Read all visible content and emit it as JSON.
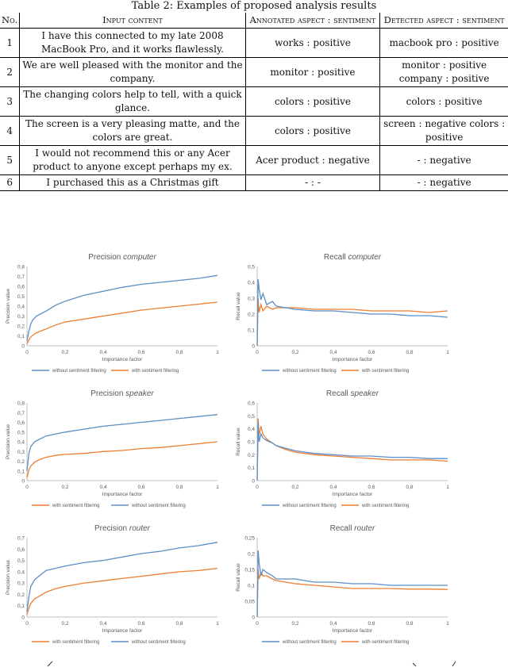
{
  "table": {
    "caption": "Table 2: Examples of proposed analysis results",
    "headers": [
      "No.",
      "Input content",
      "Annotated aspect : sentiment",
      "Detected aspect : sentiment"
    ],
    "rows": [
      {
        "no": "1",
        "input": "I have this connected to my late 2008 MacBook Pro, and it works flawlessly.",
        "annotated": "works : positive",
        "detected": "macbook pro : positive"
      },
      {
        "no": "2",
        "input": "We are well pleased with the monitor and the company.",
        "annotated": "monitor : positive",
        "detected": "monitor : positive company : positive"
      },
      {
        "no": "3",
        "input": "The changing colors help to tell, with a quick glance.",
        "annotated": "colors : positive",
        "detected": "colors : positive"
      },
      {
        "no": "4",
        "input": "The screen is a very pleasing matte, and the colors are great.",
        "annotated": "colors : positive",
        "detected": "screen : negative colors : positive"
      },
      {
        "no": "5",
        "input": "I would not recommend this or any Acer product to anyone except perhaps my ex.",
        "annotated": "Acer product : negative",
        "detected": "- : negative"
      },
      {
        "no": "6",
        "input": "I purchased this as a Christmas gift",
        "annotated": "- : -",
        "detected": "- : negative"
      }
    ]
  },
  "colors": {
    "without": "#5b8ec7",
    "with": "#ed7d31"
  },
  "chart_data": [
    {
      "id": "precision-computer",
      "type": "line",
      "title": "Precision",
      "title_italic": "computer",
      "xlabel": "Importance factor",
      "ylabel": "Precision value",
      "xlim": [
        0,
        1
      ],
      "ylim": [
        0,
        0.8
      ],
      "xticks": [
        "0",
        "0,2",
        "0,4",
        "0,6",
        "0,8",
        "1"
      ],
      "yticks": [
        "0",
        "0,1",
        "0,2",
        "0,3",
        "0,4",
        "0,5",
        "0,6",
        "0,7",
        "0,8"
      ],
      "legend_order": [
        "without",
        "with"
      ],
      "series": [
        {
          "name": "without sentiment filtering",
          "key": "without",
          "x": [
            0,
            0.01,
            0.02,
            0.03,
            0.05,
            0.07,
            0.1,
            0.15,
            0.2,
            0.3,
            0.4,
            0.5,
            0.6,
            0.7,
            0.8,
            0.9,
            1.0
          ],
          "y": [
            0.05,
            0.15,
            0.22,
            0.26,
            0.3,
            0.32,
            0.35,
            0.41,
            0.45,
            0.51,
            0.55,
            0.59,
            0.62,
            0.64,
            0.66,
            0.68,
            0.71
          ]
        },
        {
          "name": "with sentiment filtering",
          "key": "with",
          "x": [
            0,
            0.01,
            0.02,
            0.04,
            0.06,
            0.1,
            0.15,
            0.2,
            0.3,
            0.4,
            0.5,
            0.6,
            0.7,
            0.8,
            0.9,
            1.0
          ],
          "y": [
            0.02,
            0.06,
            0.09,
            0.12,
            0.14,
            0.17,
            0.21,
            0.24,
            0.27,
            0.3,
            0.33,
            0.36,
            0.38,
            0.4,
            0.42,
            0.44
          ]
        }
      ]
    },
    {
      "id": "recall-computer",
      "type": "line",
      "title": "Recall",
      "title_italic": "computer",
      "xlabel": "Importance factor",
      "ylabel": "Recall value",
      "xlim": [
        0,
        1
      ],
      "ylim": [
        0,
        0.5
      ],
      "xticks": [
        "0",
        "0,2",
        "0,4",
        "0,6",
        "0,8",
        "1"
      ],
      "yticks": [
        "0",
        "0,1",
        "0,2",
        "0,3",
        "0,4",
        "0,5"
      ],
      "legend_order": [
        "without",
        "with"
      ],
      "series": [
        {
          "name": "without sentiment filtering",
          "key": "without",
          "x": [
            0,
            0.005,
            0.01,
            0.02,
            0.03,
            0.05,
            0.08,
            0.1,
            0.15,
            0.2,
            0.3,
            0.4,
            0.5,
            0.6,
            0.7,
            0.8,
            0.9,
            1.0
          ],
          "y": [
            0.0,
            0.42,
            0.36,
            0.29,
            0.33,
            0.26,
            0.28,
            0.25,
            0.24,
            0.23,
            0.22,
            0.22,
            0.21,
            0.2,
            0.2,
            0.19,
            0.19,
            0.18
          ]
        },
        {
          "name": "with sentiment filtering",
          "key": "with",
          "x": [
            0,
            0.005,
            0.01,
            0.02,
            0.03,
            0.05,
            0.08,
            0.1,
            0.15,
            0.2,
            0.3,
            0.4,
            0.5,
            0.6,
            0.7,
            0.8,
            0.9,
            1.0
          ],
          "y": [
            0.0,
            0.3,
            0.21,
            0.26,
            0.22,
            0.25,
            0.23,
            0.24,
            0.24,
            0.24,
            0.23,
            0.23,
            0.23,
            0.22,
            0.22,
            0.22,
            0.21,
            0.22
          ]
        }
      ]
    },
    {
      "id": "precision-speaker",
      "type": "line",
      "title": "Precision",
      "title_italic": "speaker",
      "xlabel": "Importance factor",
      "ylabel": "Precision value",
      "xlim": [
        0,
        1
      ],
      "ylim": [
        0,
        0.8
      ],
      "xticks": [
        "0",
        "0,2",
        "0,4",
        "0,6",
        "0,8",
        "1"
      ],
      "yticks": [
        "0",
        "0,1",
        "0,2",
        "0,3",
        "0,4",
        "0,5",
        "0,6",
        "0,7",
        "0,8"
      ],
      "legend_order": [
        "with",
        "without"
      ],
      "series": [
        {
          "name": "without sentiment filtering",
          "key": "without",
          "x": [
            0,
            0.01,
            0.02,
            0.04,
            0.07,
            0.1,
            0.15,
            0.2,
            0.3,
            0.4,
            0.5,
            0.6,
            0.7,
            0.8,
            0.9,
            1.0
          ],
          "y": [
            0.1,
            0.28,
            0.35,
            0.4,
            0.43,
            0.46,
            0.48,
            0.5,
            0.53,
            0.56,
            0.58,
            0.6,
            0.62,
            0.64,
            0.66,
            0.68
          ]
        },
        {
          "name": "with sentiment filtering",
          "key": "with",
          "x": [
            0,
            0.01,
            0.02,
            0.04,
            0.07,
            0.1,
            0.15,
            0.2,
            0.3,
            0.4,
            0.5,
            0.6,
            0.7,
            0.8,
            0.9,
            1.0
          ],
          "y": [
            0.03,
            0.11,
            0.15,
            0.19,
            0.22,
            0.24,
            0.26,
            0.27,
            0.28,
            0.3,
            0.31,
            0.33,
            0.34,
            0.36,
            0.38,
            0.4
          ]
        }
      ]
    },
    {
      "id": "recall-speaker",
      "type": "line",
      "title": "Recall",
      "title_italic": "speaker",
      "xlabel": "Importance factor",
      "ylabel": "Recall value",
      "xlim": [
        0,
        1
      ],
      "ylim": [
        0,
        0.6
      ],
      "xticks": [
        "0",
        "0,2",
        "0,4",
        "0,6",
        "0,8",
        "1"
      ],
      "yticks": [
        "0",
        "0,1",
        "0,2",
        "0,3",
        "0,4",
        "0,5",
        "0,6"
      ],
      "legend_order": [
        "without",
        "with"
      ],
      "series": [
        {
          "name": "without sentiment filtering",
          "key": "without",
          "x": [
            0,
            0.005,
            0.01,
            0.02,
            0.03,
            0.05,
            0.08,
            0.1,
            0.15,
            0.2,
            0.3,
            0.4,
            0.5,
            0.6,
            0.7,
            0.8,
            0.9,
            1.0
          ],
          "y": [
            0.0,
            0.45,
            0.3,
            0.36,
            0.33,
            0.31,
            0.29,
            0.27,
            0.25,
            0.23,
            0.21,
            0.2,
            0.19,
            0.19,
            0.18,
            0.18,
            0.17,
            0.17
          ]
        },
        {
          "name": "with sentiment filtering",
          "key": "with",
          "x": [
            0,
            0.005,
            0.01,
            0.02,
            0.03,
            0.05,
            0.08,
            0.1,
            0.15,
            0.2,
            0.3,
            0.4,
            0.5,
            0.6,
            0.7,
            0.8,
            0.9,
            1.0
          ],
          "y": [
            0.0,
            0.48,
            0.35,
            0.42,
            0.36,
            0.32,
            0.29,
            0.27,
            0.24,
            0.22,
            0.2,
            0.19,
            0.18,
            0.17,
            0.16,
            0.16,
            0.16,
            0.15
          ]
        }
      ]
    },
    {
      "id": "precision-router",
      "type": "line",
      "title": "Precision",
      "title_italic": "router",
      "xlabel": "Importance factor",
      "ylabel": "Precision value",
      "xlim": [
        0,
        1
      ],
      "ylim": [
        0,
        0.7
      ],
      "xticks": [
        "0",
        "0,2",
        "0,4",
        "0,6",
        "0,8",
        "1"
      ],
      "yticks": [
        "0",
        "0,1",
        "0,2",
        "0,3",
        "0,4",
        "0,5",
        "0,6",
        "0,7"
      ],
      "legend_order": [
        "with",
        "without"
      ],
      "series": [
        {
          "name": "without sentiment filtering",
          "key": "without",
          "x": [
            0,
            0.01,
            0.02,
            0.04,
            0.07,
            0.1,
            0.15,
            0.2,
            0.3,
            0.4,
            0.5,
            0.6,
            0.7,
            0.8,
            0.9,
            1.0
          ],
          "y": [
            0.05,
            0.18,
            0.27,
            0.33,
            0.37,
            0.41,
            0.43,
            0.45,
            0.48,
            0.5,
            0.53,
            0.56,
            0.58,
            0.61,
            0.63,
            0.66
          ]
        },
        {
          "name": "with sentiment filtering",
          "key": "with",
          "x": [
            0,
            0.01,
            0.02,
            0.04,
            0.07,
            0.1,
            0.15,
            0.2,
            0.3,
            0.4,
            0.5,
            0.6,
            0.7,
            0.8,
            0.9,
            1.0
          ],
          "y": [
            0.02,
            0.08,
            0.12,
            0.16,
            0.19,
            0.22,
            0.25,
            0.27,
            0.3,
            0.32,
            0.34,
            0.36,
            0.38,
            0.4,
            0.41,
            0.43
          ]
        }
      ]
    },
    {
      "id": "recall-router",
      "type": "line",
      "title": "Recall",
      "title_italic": "router",
      "xlabel": "Importance factor",
      "ylabel": "Recall value",
      "xlim": [
        0,
        1
      ],
      "ylim": [
        0,
        0.25
      ],
      "xticks": [
        "0",
        "0,2",
        "0,4",
        "0,6",
        "0,8",
        "1"
      ],
      "yticks": [
        "0",
        "0,05",
        "0,1",
        "0,15",
        "0,2",
        "0,25"
      ],
      "legend_order": [
        "without",
        "with"
      ],
      "series": [
        {
          "name": "without sentiment filtering",
          "key": "without",
          "x": [
            0,
            0.005,
            0.01,
            0.02,
            0.03,
            0.05,
            0.08,
            0.1,
            0.15,
            0.2,
            0.3,
            0.4,
            0.5,
            0.6,
            0.7,
            0.8,
            0.9,
            1.0
          ],
          "y": [
            0.0,
            0.21,
            0.17,
            0.13,
            0.15,
            0.14,
            0.13,
            0.12,
            0.12,
            0.12,
            0.11,
            0.11,
            0.105,
            0.105,
            0.1,
            0.1,
            0.1,
            0.1
          ]
        },
        {
          "name": "with sentiment filtering",
          "key": "with",
          "x": [
            0,
            0.005,
            0.01,
            0.02,
            0.03,
            0.05,
            0.08,
            0.1,
            0.15,
            0.2,
            0.3,
            0.4,
            0.5,
            0.6,
            0.7,
            0.8,
            0.9,
            1.0
          ],
          "y": [
            0.0,
            0.15,
            0.12,
            0.14,
            0.13,
            0.13,
            0.12,
            0.115,
            0.11,
            0.105,
            0.1,
            0.095,
            0.09,
            0.09,
            0.09,
            0.088,
            0.088,
            0.087
          ]
        }
      ]
    }
  ]
}
